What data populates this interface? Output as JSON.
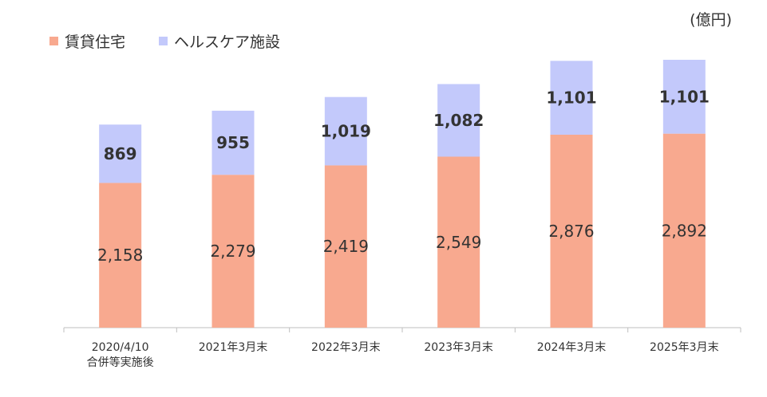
{
  "unit_label": "(億円)",
  "colors": {
    "rental_housing": "#F8A98F",
    "healthcare": "#C3C9FB",
    "axis": "#BFBFBF",
    "text": "#333333"
  },
  "chart_data": {
    "type": "bar",
    "stacked": true,
    "categories": [
      [
        "2020/4/10",
        "合併等実施後"
      ],
      [
        "2021年3月末"
      ],
      [
        "2022年3月末"
      ],
      [
        "2023年3月末"
      ],
      [
        "2024年3月末"
      ],
      [
        "2025年3月末"
      ]
    ],
    "series": [
      {
        "name": "賃貸住宅",
        "values": [
          2158,
          2279,
          2419,
          2549,
          2876,
          2892
        ],
        "labels": [
          "2,158",
          "2,279",
          "2,419",
          "2,549",
          "2,876",
          "2,892"
        ]
      },
      {
        "name": "ヘルスケア施設",
        "values": [
          869,
          955,
          1019,
          1082,
          1101,
          1101
        ],
        "labels": [
          "869",
          "955",
          "1,019",
          "1,082",
          "1,101",
          "1,101"
        ]
      }
    ],
    "unit": "億円",
    "legend_position": "top-left",
    "grid": false
  }
}
